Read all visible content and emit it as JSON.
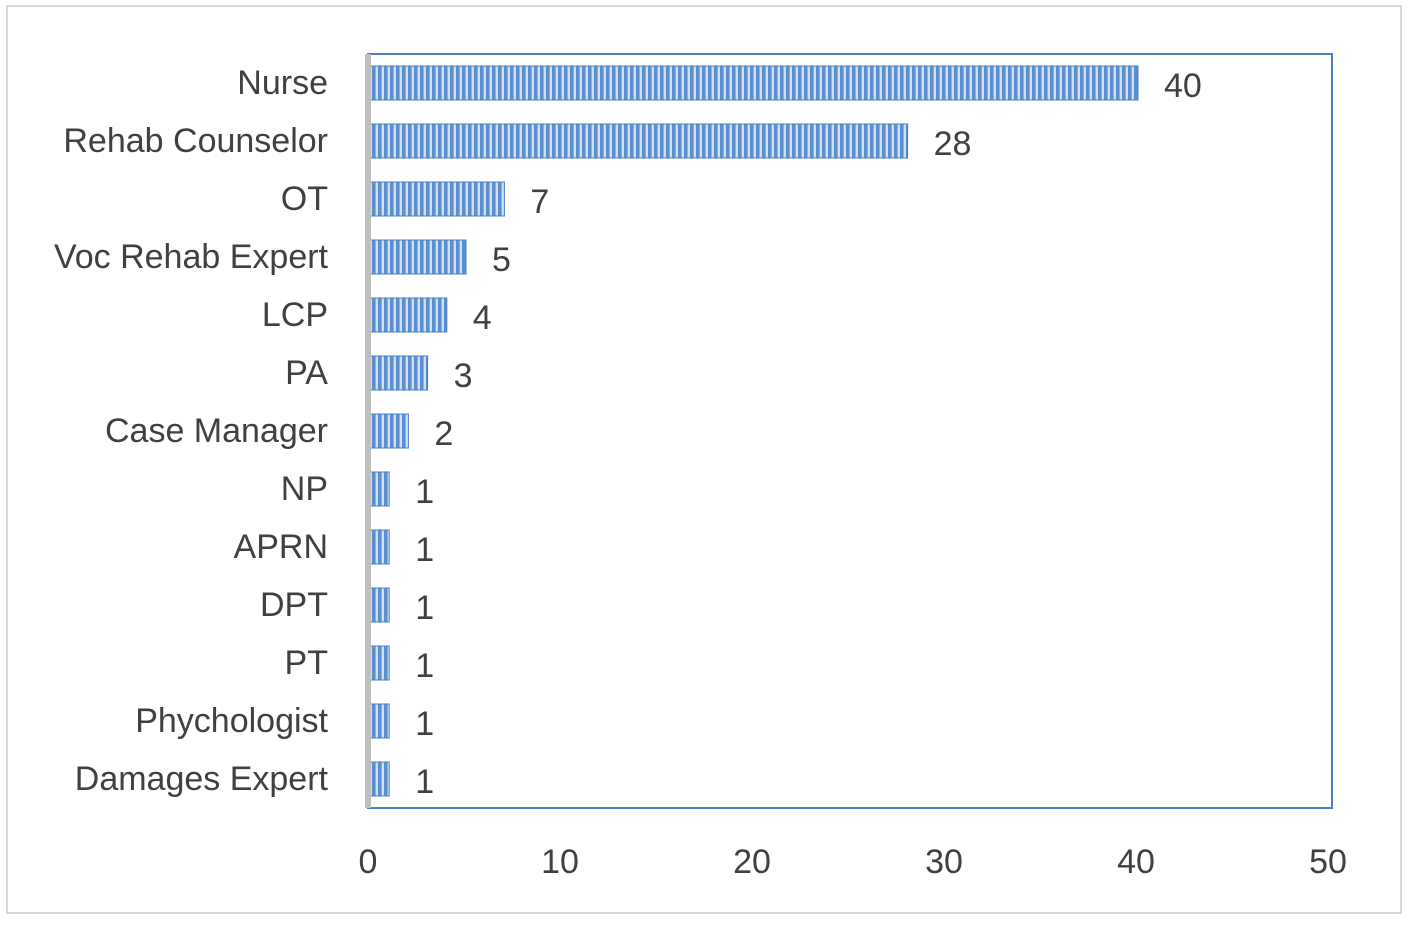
{
  "chart_data": {
    "type": "bar",
    "orientation": "horizontal",
    "title": "",
    "xlabel": "",
    "ylabel": "",
    "categories": [
      "Nurse",
      "Rehab Counselor",
      "OT",
      "Voc Rehab Expert",
      "LCP",
      "PA",
      "Case Manager",
      "NP",
      "APRN",
      "DPT",
      "PT",
      "Phychologist",
      "Damages Expert"
    ],
    "values": [
      40,
      28,
      7,
      5,
      4,
      3,
      2,
      1,
      1,
      1,
      1,
      1,
      1
    ],
    "xlim": [
      0,
      50
    ],
    "xticks": [
      "0",
      "10",
      "20",
      "30",
      "40",
      "50"
    ],
    "data_labels": [
      "40",
      "28",
      "7",
      "5",
      "4",
      "3",
      "2",
      "1",
      "1",
      "1",
      "1",
      "1",
      "1"
    ],
    "grid": false,
    "legend": "none",
    "bar_color": "#5b8fd0",
    "bar_stripe_color": "#cfe0f5",
    "plot_border_color": "#4a7fc1",
    "axis_line_color": "#bfbfbf"
  }
}
